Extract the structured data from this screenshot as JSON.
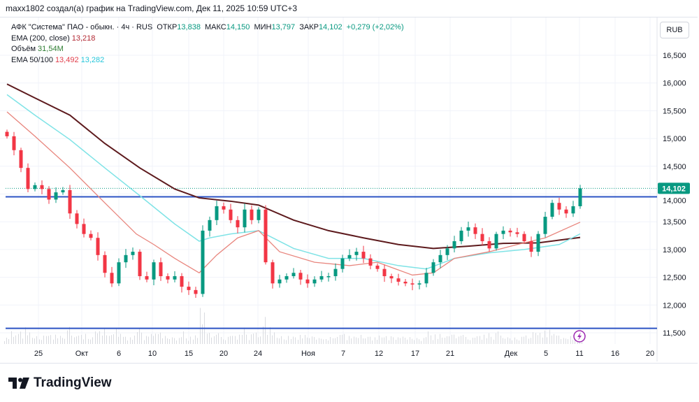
{
  "caption": "maxx1802 создал(а) график на TradingView.com, Дек 11, 2025 10:59 UTC+3",
  "legend": {
    "symbol": "АФК \"Система\" ПАО - обыкн. · 4ч · RUS",
    "open_label": "ОТКР",
    "open": "13,838",
    "high_label": "МАКС",
    "high": "14,150",
    "low_label": "МИН",
    "low": "13,797",
    "close_label": "ЗАКР",
    "close": "14,102",
    "change": "+0,279 (+2,02%)",
    "ema200_label": "EMA (200, close)",
    "ema200": "13,218",
    "volume_label": "Объём",
    "volume": "31,54M",
    "ema50_100_label": "EMA 50/100",
    "ema50": "13,492",
    "ema100": "13,282"
  },
  "currency_button": "RUB",
  "logo_text": "TradingView",
  "colors": {
    "up": "#089981",
    "down": "#f23645",
    "ema200": "#5d1a1d",
    "ema100": "#7fe3e6",
    "ema50": "#e8857d",
    "level": "#2c53c4",
    "last_price": "#089981",
    "alert": "#9c27b0"
  },
  "chart_data": {
    "type": "candlestick",
    "interval": "4ч",
    "y_ticks": [
      "16,500",
      "16,000",
      "15,500",
      "15,000",
      "14,500",
      "14,000",
      "13,500",
      "13,000",
      "12,500",
      "12,000",
      "11,500"
    ],
    "y_tick_values": [
      16500,
      16000,
      15500,
      15000,
      14500,
      14000,
      13500,
      13000,
      12500,
      12000,
      11500
    ],
    "ylim": [
      11300,
      16800
    ],
    "x_ticks": [
      {
        "label": "25",
        "i": 4.5
      },
      {
        "label": "Окт",
        "i": 10.7
      },
      {
        "label": "6",
        "i": 16
      },
      {
        "label": "10",
        "i": 20.8
      },
      {
        "label": "15",
        "i": 26
      },
      {
        "label": "20",
        "i": 31
      },
      {
        "label": "24",
        "i": 35.9
      },
      {
        "label": "Ноя",
        "i": 43.1
      },
      {
        "label": "7",
        "i": 48.1
      },
      {
        "label": "12",
        "i": 53.2
      },
      {
        "label": "17",
        "i": 58.4
      },
      {
        "label": "21",
        "i": 63.4
      },
      {
        "label": "Дек",
        "i": 72.1
      },
      {
        "label": "5",
        "i": 77.1
      },
      {
        "label": "11",
        "i": 81.9
      },
      {
        "label": "16",
        "i": 87
      },
      {
        "label": "20",
        "i": 92
      }
    ],
    "closes": [
      15040,
      14790,
      14470,
      14090,
      14160,
      14090,
      13900,
      14030,
      14070,
      13650,
      13460,
      13280,
      13210,
      12900,
      12580,
      12390,
      12770,
      12900,
      12960,
      12520,
      12460,
      12770,
      12520,
      12460,
      12520,
      12330,
      12270,
      12200,
      13340,
      13530,
      13780,
      13720,
      13530,
      13400,
      13720,
      13530,
      13720,
      12770,
      12390,
      12460,
      12520,
      12580,
      12460,
      12390,
      12460,
      12520,
      12520,
      12650,
      12840,
      12900,
      12960,
      12840,
      12710,
      12650,
      12520,
      12480,
      12420,
      12390,
      12370,
      12390,
      12580,
      12770,
      12900,
      13020,
      13150,
      13340,
      13400,
      13280,
      13150,
      13020,
      13280,
      13340,
      13310,
      13280,
      13150,
      12960,
      13280,
      13590,
      13840,
      13720,
      13650,
      13780,
      14102
    ],
    "ema200": [
      [
        0,
        15980
      ],
      [
        4,
        15730
      ],
      [
        9,
        15420
      ],
      [
        14,
        14910
      ],
      [
        19,
        14470
      ],
      [
        24,
        14090
      ],
      [
        27.5,
        13930
      ],
      [
        32,
        13870
      ],
      [
        36,
        13800
      ],
      [
        41,
        13530
      ],
      [
        46,
        13340
      ],
      [
        51,
        13210
      ],
      [
        56,
        13090
      ],
      [
        61,
        13020
      ],
      [
        66,
        13060
      ],
      [
        71,
        13110
      ],
      [
        76,
        13120
      ],
      [
        82,
        13218
      ]
    ],
    "ema100": [
      [
        0,
        15790
      ],
      [
        4,
        15420
      ],
      [
        9,
        14980
      ],
      [
        14,
        14470
      ],
      [
        19,
        13970
      ],
      [
        24,
        13460
      ],
      [
        27.5,
        13150
      ],
      [
        29,
        13210
      ],
      [
        32,
        13280
      ],
      [
        36,
        13340
      ],
      [
        41,
        13020
      ],
      [
        46,
        12840
      ],
      [
        51,
        12840
      ],
      [
        56,
        12710
      ],
      [
        60,
        12650
      ],
      [
        64,
        12840
      ],
      [
        69,
        12940
      ],
      [
        74,
        13000
      ],
      [
        79,
        13090
      ],
      [
        82,
        13282
      ]
    ],
    "ema50": [
      [
        0,
        15480
      ],
      [
        4,
        15040
      ],
      [
        9,
        14470
      ],
      [
        14,
        13840
      ],
      [
        18.5,
        13280
      ],
      [
        21,
        13090
      ],
      [
        24,
        12840
      ],
      [
        27.5,
        12580
      ],
      [
        30,
        12900
      ],
      [
        33,
        13210
      ],
      [
        36,
        13340
      ],
      [
        39,
        12960
      ],
      [
        44,
        12770
      ],
      [
        49,
        12710
      ],
      [
        53,
        12770
      ],
      [
        58,
        12540
      ],
      [
        61,
        12580
      ],
      [
        64,
        12840
      ],
      [
        69,
        12960
      ],
      [
        73,
        13090
      ],
      [
        77,
        13210
      ],
      [
        82,
        13492
      ]
    ],
    "horizontal_levels": [
      13950,
      11580
    ],
    "last_price": 14102,
    "last_price_label": "14,102"
  }
}
